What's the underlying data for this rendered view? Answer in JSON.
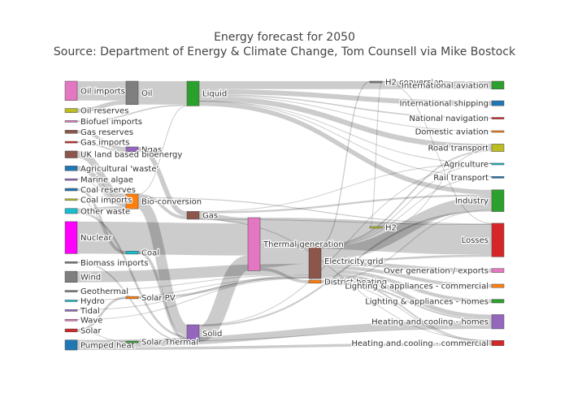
{
  "chart_data": {
    "type": "sankey",
    "title": "Energy forecast for 2050",
    "subtitle": "Source: Department of Energy & Climate Change, Tom Counsell via Mike Bostock",
    "nodes": [
      {
        "name": "Agricultural 'waste'",
        "color": "#1f77b4"
      },
      {
        "name": "Bio-conversion",
        "color": "#ff7f0e"
      },
      {
        "name": "Liquid",
        "color": "#2ca02c"
      },
      {
        "name": "Losses",
        "color": "#d62728"
      },
      {
        "name": "Solid",
        "color": "#9467bd"
      },
      {
        "name": "Gas",
        "color": "#8c564b"
      },
      {
        "name": "Biofuel imports",
        "color": "#e377c2"
      },
      {
        "name": "Biomass imports",
        "color": "#7f7f7f"
      },
      {
        "name": "Coal imports",
        "color": "#bcbd22"
      },
      {
        "name": "Coal",
        "color": "#17becf"
      },
      {
        "name": "Coal reserves",
        "color": "#1f77b4"
      },
      {
        "name": "District heating",
        "color": "#ff7f0e"
      },
      {
        "name": "Industry",
        "color": "#2ca02c"
      },
      {
        "name": "Heating and cooling - commercial",
        "color": "#d62728"
      },
      {
        "name": "Heating and cooling - homes",
        "color": "#9467bd"
      },
      {
        "name": "Electricity grid",
        "color": "#8c564b"
      },
      {
        "name": "Over generation / exports",
        "color": "#e377c2"
      },
      {
        "name": "H2 conversion",
        "color": "#7f7f7f"
      },
      {
        "name": "Road transport",
        "color": "#bcbd22"
      },
      {
        "name": "Agriculture",
        "color": "#17becf"
      },
      {
        "name": "Rail transport",
        "color": "#1f77b4"
      },
      {
        "name": "Lighting & appliances - commercial",
        "color": "#ff7f0e"
      },
      {
        "name": "Lighting & appliances - homes",
        "color": "#2ca02c"
      },
      {
        "name": "Gas imports",
        "color": "#d62728"
      },
      {
        "name": "Ngas",
        "color": "#9467bd"
      },
      {
        "name": "Gas reserves",
        "color": "#8c564b"
      },
      {
        "name": "Thermal generation",
        "color": "#e377c2"
      },
      {
        "name": "Geothermal",
        "color": "#7f7f7f"
      },
      {
        "name": "H2",
        "color": "#bcbd22"
      },
      {
        "name": "Hydro",
        "color": "#17becf"
      },
      {
        "name": "International shipping",
        "color": "#1f77b4"
      },
      {
        "name": "Domestic aviation",
        "color": "#ff7f0e"
      },
      {
        "name": "International aviation",
        "color": "#2ca02c"
      },
      {
        "name": "National navigation",
        "color": "#d62728"
      },
      {
        "name": "Marine algae",
        "color": "#9467bd"
      },
      {
        "name": "Nuclear",
        "color": "#ff00ff"
      },
      {
        "name": "Oil imports",
        "color": "#e377c2"
      },
      {
        "name": "Oil",
        "color": "#7f7f7f"
      },
      {
        "name": "Oil reserves",
        "color": "#bcbd22"
      },
      {
        "name": "Other waste",
        "color": "#17becf"
      },
      {
        "name": "Pumped heat",
        "color": "#1f77b4"
      },
      {
        "name": "Solar PV",
        "color": "#ff7f0e"
      },
      {
        "name": "Solar Thermal",
        "color": "#2ca02c"
      },
      {
        "name": "Solar",
        "color": "#d62728"
      },
      {
        "name": "Tidal",
        "color": "#9467bd"
      },
      {
        "name": "UK land based bioenergy",
        "color": "#8c564b"
      },
      {
        "name": "Wave",
        "color": "#e377c2"
      },
      {
        "name": "Wind",
        "color": "#7f7f7f"
      }
    ],
    "links": [
      {
        "source": "Agricultural 'waste'",
        "target": "Bio-conversion",
        "value": 124.729
      },
      {
        "source": "Bio-conversion",
        "target": "Liquid",
        "value": 0.597
      },
      {
        "source": "Bio-conversion",
        "target": "Losses",
        "value": 26.862
      },
      {
        "source": "Bio-conversion",
        "target": "Solid",
        "value": 280.322
      },
      {
        "source": "Bio-conversion",
        "target": "Gas",
        "value": 81.144
      },
      {
        "source": "Biofuel imports",
        "target": "Liquid",
        "value": 35
      },
      {
        "source": "Biomass imports",
        "target": "Solid",
        "value": 35
      },
      {
        "source": "Coal imports",
        "target": "Coal",
        "value": 11.606
      },
      {
        "source": "Coal reserves",
        "target": "Coal",
        "value": 63.965
      },
      {
        "source": "Coal",
        "target": "Solid",
        "value": 75.571
      },
      {
        "source": "District heating",
        "target": "Industry",
        "value": 10.639
      },
      {
        "source": "District heating",
        "target": "Heating and cooling - commercial",
        "value": 22.505
      },
      {
        "source": "District heating",
        "target": "Heating and cooling - homes",
        "value": 46.184
      },
      {
        "source": "Electricity grid",
        "target": "Over generation / exports",
        "value": 104.453
      },
      {
        "source": "Electricity grid",
        "target": "Heating and cooling - homes",
        "value": 113.726
      },
      {
        "source": "Electricity grid",
        "target": "H2 conversion",
        "value": 27.14
      },
      {
        "source": "Electricity grid",
        "target": "Industry",
        "value": 342.165
      },
      {
        "source": "Electricity grid",
        "target": "Road transport",
        "value": 37.797
      },
      {
        "source": "Electricity grid",
        "target": "Agriculture",
        "value": 4.412
      },
      {
        "source": "Electricity grid",
        "target": "Heating and cooling - commercial",
        "value": 40.858
      },
      {
        "source": "Electricity grid",
        "target": "Losses",
        "value": 56.691
      },
      {
        "source": "Electricity grid",
        "target": "Rail transport",
        "value": 7.863
      },
      {
        "source": "Electricity grid",
        "target": "Lighting & appliances - commercial",
        "value": 90.008
      },
      {
        "source": "Electricity grid",
        "target": "Lighting & appliances - homes",
        "value": 93.494
      },
      {
        "source": "Gas imports",
        "target": "Ngas",
        "value": 40.719
      },
      {
        "source": "Gas reserves",
        "target": "Ngas",
        "value": 82.233
      },
      {
        "source": "Gas",
        "target": "Heating and cooling - commercial",
        "value": 0.129
      },
      {
        "source": "Gas",
        "target": "Losses",
        "value": 1.401
      },
      {
        "source": "Gas",
        "target": "Thermal generation",
        "value": 151.891
      },
      {
        "source": "Gas",
        "target": "Agriculture",
        "value": 2.096
      },
      {
        "source": "Gas",
        "target": "Industry",
        "value": 48.58
      },
      {
        "source": "Geothermal",
        "target": "Electricity grid",
        "value": 7.013
      },
      {
        "source": "H2 conversion",
        "target": "H2",
        "value": 20.897
      },
      {
        "source": "H2 conversion",
        "target": "Losses",
        "value": 6.242
      },
      {
        "source": "H2",
        "target": "Road transport",
        "value": 20.897
      },
      {
        "source": "Hydro",
        "target": "Electricity grid",
        "value": 6.995
      },
      {
        "source": "Liquid",
        "target": "Industry",
        "value": 121.066
      },
      {
        "source": "Liquid",
        "target": "International shipping",
        "value": 128.69
      },
      {
        "source": "Liquid",
        "target": "Road transport",
        "value": 135.835
      },
      {
        "source": "Liquid",
        "target": "Domestic aviation",
        "value": 14.458
      },
      {
        "source": "Liquid",
        "target": "International aviation",
        "value": 206.267
      },
      {
        "source": "Liquid",
        "target": "Agriculture",
        "value": 3.64
      },
      {
        "source": "Liquid",
        "target": "National navigation",
        "value": 33.218
      },
      {
        "source": "Liquid",
        "target": "Rail transport",
        "value": 4.413
      },
      {
        "source": "Marine algae",
        "target": "Bio-conversion",
        "value": 4.375
      },
      {
        "source": "Ngas",
        "target": "Gas",
        "value": 122.952
      },
      {
        "source": "Nuclear",
        "target": "Thermal generation",
        "value": 839.978
      },
      {
        "source": "Oil imports",
        "target": "Oil",
        "value": 504.287
      },
      {
        "source": "Oil reserves",
        "target": "Oil",
        "value": 107.703
      },
      {
        "source": "Oil",
        "target": "Liquid",
        "value": 611.99
      },
      {
        "source": "Other waste",
        "target": "Solid",
        "value": 56.587
      },
      {
        "source": "Other waste",
        "target": "Bio-conversion",
        "value": 77.81
      },
      {
        "source": "Pumped heat",
        "target": "Heating and cooling - homes",
        "value": 193.026
      },
      {
        "source": "Pumped heat",
        "target": "Heating and cooling - commercial",
        "value": 70.672
      },
      {
        "source": "Solar PV",
        "target": "Electricity grid",
        "value": 59.901
      },
      {
        "source": "Solar Thermal",
        "target": "Heating and cooling - homes",
        "value": 19.263
      },
      {
        "source": "Solar",
        "target": "Solar Thermal",
        "value": 19.263
      },
      {
        "source": "Solar",
        "target": "Solar PV",
        "value": 59.901
      },
      {
        "source": "Solid",
        "target": "Agriculture",
        "value": 0.882
      },
      {
        "source": "Solid",
        "target": "Thermal generation",
        "value": 400.12
      },
      {
        "source": "Solid",
        "target": "Industry",
        "value": 46.477
      },
      {
        "source": "Thermal generation",
        "target": "Electricity grid",
        "value": 525.531
      },
      {
        "source": "Thermal generation",
        "target": "Losses",
        "value": 787.129
      },
      {
        "source": "Thermal generation",
        "target": "District heating",
        "value": 79.329
      },
      {
        "source": "Tidal",
        "target": "Electricity grid",
        "value": 9.452
      },
      {
        "source": "UK land based bioenergy",
        "target": "Bio-conversion",
        "value": 182.01
      },
      {
        "source": "Wave",
        "target": "Electricity grid",
        "value": 19.013
      },
      {
        "source": "Wind",
        "target": "Electricity grid",
        "value": 289.366
      }
    ]
  }
}
